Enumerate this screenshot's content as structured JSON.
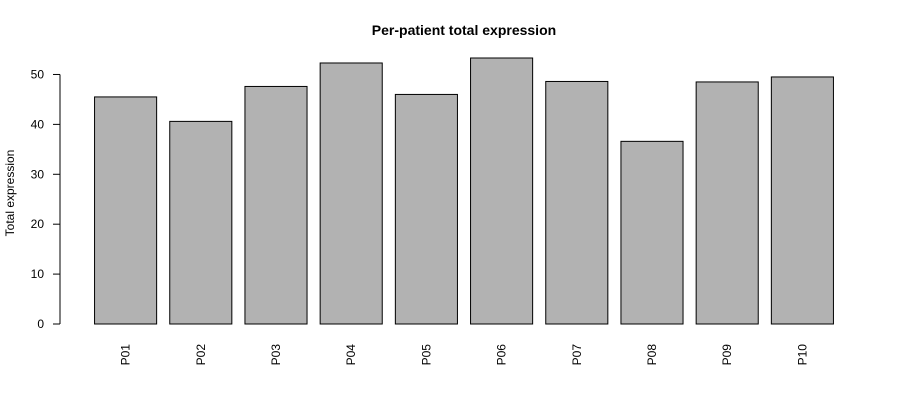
{
  "chart_data": {
    "type": "bar",
    "title": "Per-patient total expression",
    "xlabel": "",
    "ylabel": "Total expression",
    "categories": [
      "P01",
      "P02",
      "P03",
      "P04",
      "P05",
      "P06",
      "P07",
      "P08",
      "P09",
      "P10"
    ],
    "values": [
      45.5,
      40.6,
      47.6,
      52.3,
      46.0,
      53.3,
      48.6,
      36.6,
      48.5,
      49.5
    ],
    "ylim": [
      0,
      53.3
    ],
    "yticks": [
      0,
      10,
      20,
      30,
      40,
      50
    ],
    "grid": false,
    "legend": "none",
    "bar_color": "#b2b2b2",
    "bar_outline": "#000000"
  }
}
